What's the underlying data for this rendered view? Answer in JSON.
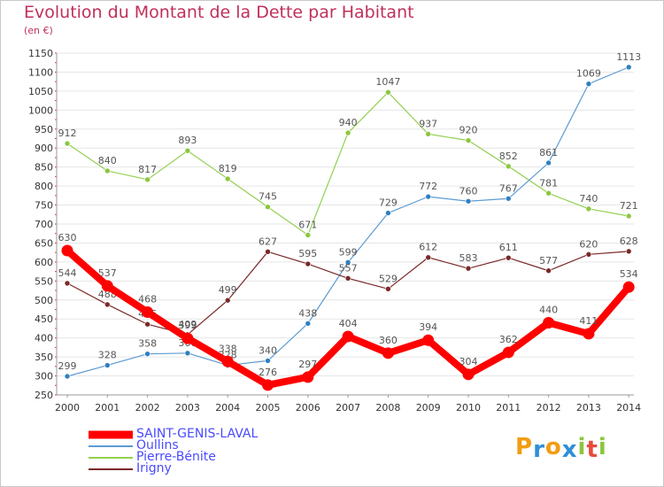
{
  "title": "Evolution du Montant de la Dette par Habitant",
  "unit_label": "(en €)",
  "logo": {
    "letters": [
      "P",
      "r",
      "o",
      "x",
      "i",
      "t",
      "i"
    ],
    "colors": [
      "#f39c12",
      "#2f8fd8",
      "#f39c12",
      "#2f8fd8",
      "#8cc63f",
      "#e74c3c",
      "#8cc63f"
    ]
  },
  "legend": [
    {
      "label": "SAINT-GENIS-LAVAL",
      "color": "#ff0000"
    },
    {
      "label": "Oullins",
      "color": "#5d9bd3"
    },
    {
      "label": "Pierre-Bénite",
      "color": "#92d050"
    },
    {
      "label": "Irigny",
      "color": "#7a2828"
    }
  ],
  "chart_data": {
    "type": "line",
    "x": [
      "2000",
      "2001",
      "2002",
      "2003",
      "2004",
      "2005",
      "2006",
      "2007",
      "2008",
      "2009",
      "2010",
      "2011",
      "2012",
      "2013",
      "2014"
    ],
    "ylim": [
      250,
      1150
    ],
    "yticks": [
      250,
      300,
      350,
      400,
      450,
      500,
      550,
      600,
      650,
      700,
      750,
      800,
      850,
      900,
      950,
      1000,
      1050,
      1100,
      1150
    ],
    "grid": "horizontal",
    "legend_position": "bottom-left",
    "series": [
      {
        "name": "Pierre-Bénite",
        "color": "#92d050",
        "marker": "#8cc63f",
        "values": [
          912,
          840,
          817,
          893,
          819,
          745,
          671,
          940,
          1047,
          937,
          920,
          852,
          781,
          740,
          721
        ],
        "labels": [
          "912",
          "840",
          "817",
          "893",
          "819",
          "745",
          "671",
          "940",
          "1047",
          "937",
          "920",
          "852",
          "781",
          "740",
          "721"
        ]
      },
      {
        "name": "Oullins",
        "color": "#5d9bd3",
        "marker": "#2f7fc0",
        "values": [
          299,
          328,
          358,
          360,
          328,
          340,
          438,
          599,
          729,
          772,
          760,
          767,
          861,
          1069,
          1113
        ],
        "labels": [
          "299",
          "328",
          "358",
          "360",
          "328",
          "340",
          "438",
          "599",
          "729",
          "772",
          "760",
          "767",
          "861",
          "1069",
          "1113"
        ]
      },
      {
        "name": "Irigny",
        "color": "#7a2828",
        "marker": "#7a2828",
        "values": [
          544,
          488,
          436,
          409,
          499,
          627,
          595,
          557,
          529,
          612,
          583,
          611,
          577,
          620,
          628
        ],
        "labels": [
          "544",
          "488",
          "436",
          "409",
          "499",
          "627",
          "595",
          "557",
          "529",
          "612",
          "583",
          "611",
          "577",
          "620",
          "628"
        ]
      },
      {
        "name": "SAINT-GENIS-LAVAL",
        "color": "#ff0000",
        "marker": "#ff0000",
        "values": [
          630,
          537,
          468,
          399,
          338,
          276,
          297,
          404,
          360,
          394,
          304,
          362,
          440,
          411,
          534
        ],
        "labels": [
          "630",
          "537",
          "468",
          "399",
          "338",
          "276",
          "297",
          "404",
          "360",
          "394",
          "304",
          "362",
          "440",
          "411",
          "534"
        ]
      }
    ]
  }
}
